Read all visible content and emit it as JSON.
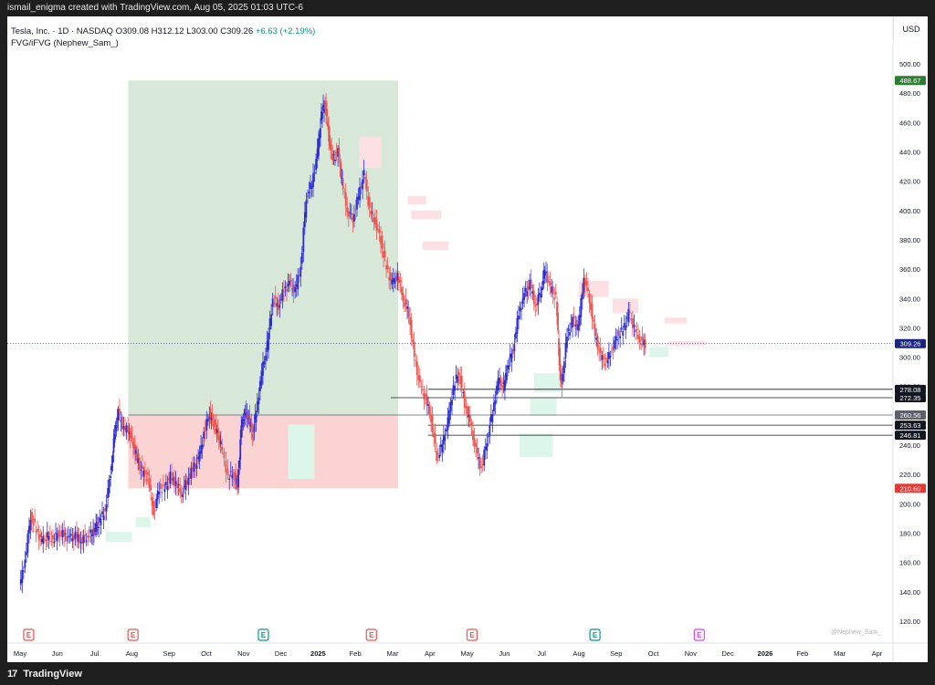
{
  "header": {
    "attribution": "ismail_enigma created with TradingView.com, Aug 05, 2025 01:03 UTC-6"
  },
  "legend": {
    "symbol": "Tesla, Inc. · 1D · NASDAQ",
    "open_label": "O",
    "open": "309.08",
    "high_label": "H",
    "high": "312.12",
    "low_label": "L",
    "low": "303.00",
    "close_label": "C",
    "close": "309.26",
    "change": "+6.63 (+2.19%)",
    "indicator": "FVG/iFVG (Nephew_Sam_)"
  },
  "currency": "USD",
  "watermark": "@Nephew_Sam_",
  "footer": {
    "brand": "TradingView"
  },
  "colors": {
    "up": "#2b2bd6",
    "down": "#ef5350",
    "target_zone": "#d7e8d9",
    "stop_zone": "#fcd3d3",
    "fvg_bull": "#ddf6ea",
    "fvg_bear": "#fde0e4"
  },
  "chart_data": {
    "type": "candlestick",
    "y_axis": {
      "min": 120,
      "max": 500,
      "ticks": [
        120,
        140,
        160,
        180,
        200,
        220,
        240,
        260,
        280,
        300,
        320,
        340,
        360,
        380,
        400,
        420,
        440,
        460,
        480,
        500
      ]
    },
    "x_axis": {
      "ticks": [
        "May",
        "Jun",
        "Jul",
        "Aug",
        "Sep",
        "Oct",
        "Nov",
        "Dec",
        "2025",
        "Feb",
        "Mar",
        "Apr",
        "May",
        "Jun",
        "Jul",
        "Aug",
        "Sep",
        "Oct",
        "Nov",
        "Dec",
        "2026",
        "Feb",
        "Mar",
        "Apr"
      ]
    },
    "last_price": 309.26,
    "price_tags": [
      {
        "value": 488.67,
        "label": "488.67",
        "bg": "#2e7d32",
        "fg": "#ffffff"
      },
      {
        "value": 309.26,
        "label": "309.26",
        "bg": "#1a237e",
        "fg": "#ffffff"
      },
      {
        "value": 278.08,
        "label": "278.08",
        "bg": "#131722",
        "fg": "#ffffff"
      },
      {
        "value": 272.35,
        "label": "272.35",
        "bg": "#131722",
        "fg": "#ffffff"
      },
      {
        "value": 260.56,
        "label": "260.56",
        "bg": "#5d606b",
        "fg": "#ffffff"
      },
      {
        "value": 253.63,
        "label": "253.63",
        "bg": "#131722",
        "fg": "#ffffff"
      },
      {
        "value": 246.81,
        "label": "246.81",
        "bg": "#131722",
        "fg": "#ffffff"
      },
      {
        "value": 210.6,
        "label": "210.60",
        "bg": "#e53935",
        "fg": "#ffffff"
      }
    ],
    "position": {
      "entry": 260.56,
      "target": 488.67,
      "stop": 210.6,
      "start": "Aug",
      "end": "Mar"
    },
    "levels": [
      {
        "value": 278.08,
        "from": "Apr"
      },
      {
        "value": 272.35,
        "from": "Mar"
      },
      {
        "value": 253.63,
        "from": "Apr"
      },
      {
        "value": 246.81,
        "from": "Apr"
      }
    ],
    "fvg_zones": [
      {
        "kind": "bull",
        "x0": 2.3,
        "x1": 3.0,
        "y0": 174,
        "y1": 181
      },
      {
        "kind": "bull",
        "x0": 3.1,
        "x1": 3.5,
        "y0": 184,
        "y1": 191
      },
      {
        "kind": "bull",
        "x0": 7.2,
        "x1": 7.9,
        "y0": 217,
        "y1": 254
      },
      {
        "kind": "bear",
        "x0": 9.1,
        "x1": 9.7,
        "y0": 429,
        "y1": 450
      },
      {
        "kind": "bear",
        "x0": 10.4,
        "x1": 10.9,
        "y0": 404,
        "y1": 410
      },
      {
        "kind": "bear",
        "x0": 10.5,
        "x1": 11.3,
        "y0": 394,
        "y1": 400
      },
      {
        "kind": "bear",
        "x0": 10.8,
        "x1": 11.5,
        "y0": 373,
        "y1": 379
      },
      {
        "kind": "bull",
        "x0": 13.8,
        "x1": 14.5,
        "y0": 276,
        "y1": 289
      },
      {
        "kind": "bull",
        "x0": 13.7,
        "x1": 14.4,
        "y0": 260,
        "y1": 272
      },
      {
        "kind": "bull",
        "x0": 13.4,
        "x1": 14.3,
        "y0": 232,
        "y1": 248
      },
      {
        "kind": "bear",
        "x0": 15.0,
        "x1": 15.8,
        "y0": 341,
        "y1": 352
      },
      {
        "kind": "bear",
        "x0": 15.9,
        "x1": 16.6,
        "y0": 330,
        "y1": 340
      },
      {
        "kind": "bear",
        "x0": 17.3,
        "x1": 17.9,
        "y0": 323,
        "y1": 327
      },
      {
        "kind": "bear",
        "x0": 17.4,
        "x1": 18.4,
        "y0": 308,
        "y1": 311
      },
      {
        "kind": "bull",
        "x0": 16.9,
        "x1": 17.4,
        "y0": 300,
        "y1": 307
      }
    ],
    "earnings_markers": [
      {
        "month_index": -0.1,
        "label": "E",
        "color": "#ef5350"
      },
      {
        "month_index": 2.7,
        "label": "E",
        "color": "#ef5350"
      },
      {
        "month_index": 6.2,
        "label": "E",
        "color": "#089981"
      },
      {
        "month_index": 9.1,
        "label": "E",
        "color": "#ef5350"
      },
      {
        "month_index": 11.8,
        "label": "E",
        "color": "#ef5350"
      },
      {
        "month_index": 15.1,
        "label": "E",
        "color": "#089981"
      },
      {
        "month_index": 17.9,
        "label": "E",
        "color": "#e040fb"
      }
    ],
    "series": [
      {
        "name": "TSLA",
        "points": [
          [
            0.0,
            143
          ],
          [
            0.15,
            162
          ],
          [
            0.3,
            192
          ],
          [
            0.45,
            182
          ],
          [
            0.6,
            174
          ],
          [
            0.75,
            178
          ],
          [
            0.9,
            176
          ],
          [
            1.05,
            180
          ],
          [
            1.2,
            179
          ],
          [
            1.35,
            176
          ],
          [
            1.5,
            178
          ],
          [
            1.65,
            175
          ],
          [
            1.8,
            178
          ],
          [
            1.95,
            180
          ],
          [
            2.05,
            184
          ],
          [
            2.15,
            188
          ],
          [
            2.3,
            196
          ],
          [
            2.45,
            222
          ],
          [
            2.55,
            248
          ],
          [
            2.65,
            262
          ],
          [
            2.8,
            251
          ],
          [
            2.95,
            250
          ],
          [
            3.05,
            241
          ],
          [
            3.15,
            231
          ],
          [
            3.3,
            221
          ],
          [
            3.45,
            218
          ],
          [
            3.6,
            194
          ],
          [
            3.75,
            211
          ],
          [
            3.9,
            210
          ],
          [
            4.05,
            219
          ],
          [
            4.2,
            214
          ],
          [
            4.35,
            207
          ],
          [
            4.5,
            216
          ],
          [
            4.65,
            224
          ],
          [
            4.8,
            229
          ],
          [
            4.95,
            248
          ],
          [
            5.1,
            262
          ],
          [
            5.2,
            255
          ],
          [
            5.3,
            250
          ],
          [
            5.4,
            240
          ],
          [
            5.6,
            219
          ],
          [
            5.75,
            220
          ],
          [
            5.85,
            213
          ],
          [
            5.95,
            252
          ],
          [
            6.05,
            262
          ],
          [
            6.15,
            258
          ],
          [
            6.25,
            248
          ],
          [
            6.35,
            262
          ],
          [
            6.5,
            289
          ],
          [
            6.65,
            308
          ],
          [
            6.8,
            340
          ],
          [
            6.95,
            335
          ],
          [
            7.1,
            346
          ],
          [
            7.25,
            350
          ],
          [
            7.4,
            345
          ],
          [
            7.55,
            362
          ],
          [
            7.7,
            410
          ],
          [
            7.85,
            418
          ],
          [
            8.0,
            440
          ],
          [
            8.1,
            465
          ],
          [
            8.2,
            474
          ],
          [
            8.3,
            450
          ],
          [
            8.4,
            435
          ],
          [
            8.55,
            440
          ],
          [
            8.65,
            420
          ],
          [
            8.8,
            400
          ],
          [
            8.95,
            395
          ],
          [
            9.1,
            410
          ],
          [
            9.25,
            425
          ],
          [
            9.4,
            400
          ],
          [
            9.55,
            392
          ],
          [
            9.7,
            380
          ],
          [
            9.85,
            360
          ],
          [
            10.0,
            350
          ],
          [
            10.15,
            356
          ],
          [
            10.3,
            340
          ],
          [
            10.45,
            330
          ],
          [
            10.6,
            300
          ],
          [
            10.75,
            280
          ],
          [
            10.9,
            272
          ],
          [
            11.05,
            258
          ],
          [
            11.2,
            232
          ],
          [
            11.35,
            240
          ],
          [
            11.5,
            256
          ],
          [
            11.65,
            280
          ],
          [
            11.8,
            290
          ],
          [
            11.95,
            268
          ],
          [
            12.1,
            255
          ],
          [
            12.25,
            236
          ],
          [
            12.4,
            224
          ],
          [
            12.55,
            244
          ],
          [
            12.7,
            263
          ],
          [
            12.85,
            284
          ],
          [
            13.0,
            280
          ],
          [
            13.1,
            294
          ],
          [
            13.25,
            305
          ],
          [
            13.4,
            330
          ],
          [
            13.55,
            342
          ],
          [
            13.7,
            350
          ],
          [
            13.85,
            335
          ],
          [
            14.0,
            346
          ],
          [
            14.1,
            360
          ],
          [
            14.25,
            347
          ],
          [
            14.4,
            340
          ],
          [
            14.5,
            291
          ],
          [
            14.55,
            282
          ],
          [
            14.7,
            315
          ],
          [
            14.85,
            325
          ],
          [
            15.0,
            320
          ],
          [
            15.15,
            355
          ],
          [
            15.3,
            340
          ],
          [
            15.45,
            315
          ],
          [
            15.6,
            300
          ],
          [
            15.75,
            296
          ],
          [
            15.9,
            305
          ],
          [
            16.05,
            315
          ],
          [
            16.2,
            318
          ],
          [
            16.35,
            330
          ],
          [
            16.5,
            320
          ],
          [
            16.65,
            312
          ],
          [
            16.8,
            309
          ]
        ]
      }
    ]
  }
}
